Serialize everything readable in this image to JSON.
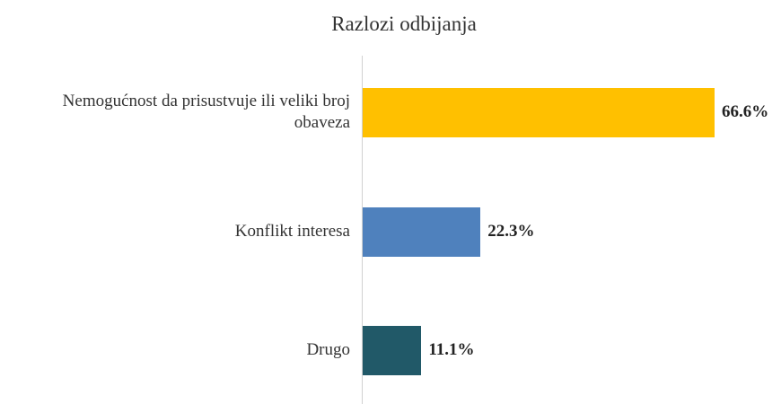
{
  "chart_data": {
    "type": "bar",
    "orientation": "horizontal",
    "title": "Razlozi odbijanja",
    "categories": [
      "Nemogućnost da prisustvuje ili veliki broj obaveza",
      "Konflikt interesa",
      "Drugo"
    ],
    "values": [
      66.6,
      22.3,
      11.1
    ],
    "value_labels": [
      "66.6%",
      "22.3%",
      "11.1%"
    ],
    "colors": [
      "#FFC000",
      "#4F81BD",
      "#215968"
    ]
  }
}
